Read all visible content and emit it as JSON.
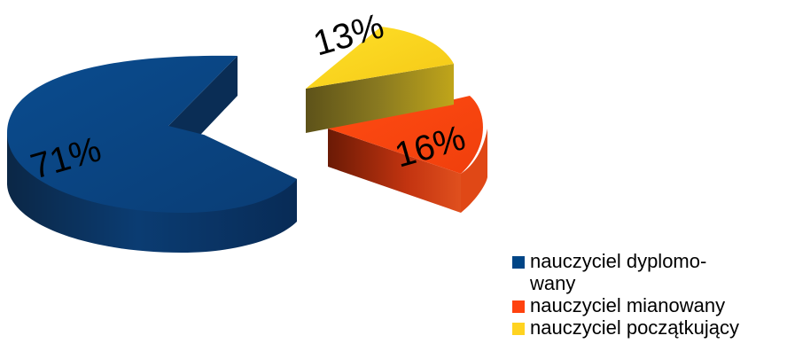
{
  "chart_data": {
    "type": "pie",
    "title": "",
    "style": "3d-exploded",
    "slices": [
      {
        "name": "nauczyciel dyplomowany",
        "legend_line1": "nauczyciel dyplomo-",
        "legend_line2": "wany",
        "value": 71,
        "label": "71%",
        "color": "#004586"
      },
      {
        "name": "nauczyciel mianowany",
        "value": 16,
        "label": "16%",
        "color": "#ff420e"
      },
      {
        "name": "nauczyciel początkujący",
        "value": 13,
        "label": "13%",
        "color": "#ffd320"
      }
    ],
    "legend_position": "bottom-right"
  }
}
